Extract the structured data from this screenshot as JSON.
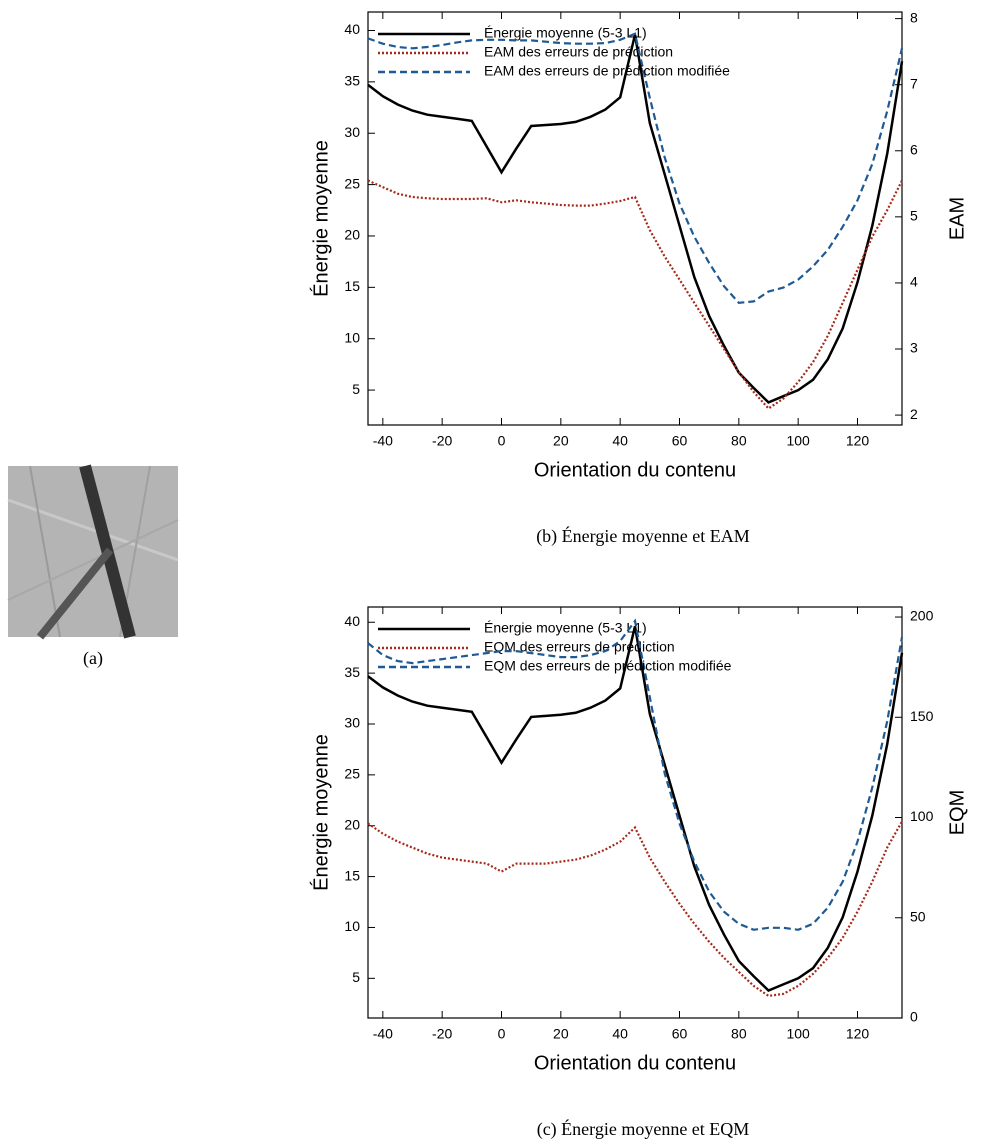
{
  "figure": {
    "image_caption": "(a)"
  },
  "chart_data": [
    {
      "type": "line",
      "caption": "(b) Énergie moyenne et EAM",
      "xlabel": "Orientation du contenu",
      "ylabel": "Énergie moyenne",
      "y2label": "EAM",
      "x": [
        -45,
        -40,
        -35,
        -30,
        -25,
        -20,
        -15,
        -10,
        -5,
        0,
        5,
        10,
        15,
        20,
        25,
        30,
        35,
        40,
        45,
        50,
        55,
        60,
        65,
        70,
        75,
        80,
        85,
        90,
        95,
        100,
        105,
        110,
        115,
        120,
        125,
        130,
        135
      ],
      "xlim": [
        -45,
        135
      ],
      "xticks": [
        -40,
        -20,
        0,
        20,
        40,
        60,
        80,
        100,
        120
      ],
      "ylim": [
        1.6,
        41.8
      ],
      "yticks": [
        5,
        10,
        15,
        20,
        25,
        30,
        35,
        40
      ],
      "y2lim": [
        1.85,
        8.1
      ],
      "y2ticks": [
        2,
        3,
        4,
        5,
        6,
        7,
        8
      ],
      "series": [
        {
          "name": "Énergie moyenne (5-3 L1)",
          "color": "#000000",
          "linestyle": "solid",
          "axis": "y",
          "values": [
            34.7,
            33.6,
            32.8,
            32.2,
            31.8,
            31.6,
            31.4,
            31.2,
            28.7,
            26.2,
            28.5,
            30.7,
            30.8,
            30.9,
            31.1,
            31.6,
            32.3,
            33.5,
            39.6,
            31,
            26,
            21,
            16,
            12.2,
            9.3,
            6.7,
            5.2,
            3.8,
            4.4,
            5.0,
            6.0,
            8.0,
            11.0,
            15.5,
            21,
            28,
            37
          ]
        },
        {
          "name": "EAM des erreurs de prédiction",
          "color": "#a52a1a",
          "linestyle": "dotted",
          "axis": "y2",
          "values": [
            5.55,
            5.45,
            5.35,
            5.3,
            5.28,
            5.27,
            5.27,
            5.27,
            5.28,
            5.22,
            5.25,
            5.22,
            5.2,
            5.18,
            5.17,
            5.17,
            5.2,
            5.24,
            5.3,
            4.8,
            4.4,
            4.05,
            3.7,
            3.35,
            3.0,
            2.65,
            2.35,
            2.1,
            2.25,
            2.5,
            2.8,
            3.2,
            3.7,
            4.2,
            4.7,
            5.1,
            5.55
          ]
        },
        {
          "name": "EAM des erreurs de prédiction modifiée",
          "color": "#1f5a94",
          "linestyle": "dashed",
          "axis": "y2",
          "values": [
            7.7,
            7.62,
            7.57,
            7.55,
            7.57,
            7.6,
            7.64,
            7.67,
            7.68,
            7.68,
            7.67,
            7.67,
            7.65,
            7.63,
            7.62,
            7.62,
            7.63,
            7.68,
            7.77,
            6.8,
            5.9,
            5.2,
            4.7,
            4.3,
            3.95,
            3.7,
            3.72,
            3.87,
            3.93,
            4.05,
            4.25,
            4.5,
            4.85,
            5.25,
            5.8,
            6.6,
            7.55
          ]
        }
      ]
    },
    {
      "type": "line",
      "caption": "(c) Énergie moyenne et EQM",
      "xlabel": "Orientation du contenu",
      "ylabel": "Énergie moyenne",
      "y2label": "EQM",
      "x": [
        -45,
        -40,
        -35,
        -30,
        -25,
        -20,
        -15,
        -10,
        -5,
        0,
        5,
        10,
        15,
        20,
        25,
        30,
        35,
        40,
        45,
        50,
        55,
        60,
        65,
        70,
        75,
        80,
        85,
        90,
        95,
        100,
        105,
        110,
        115,
        120,
        125,
        130,
        135
      ],
      "xlim": [
        -45,
        135
      ],
      "xticks": [
        -40,
        -20,
        0,
        20,
        40,
        60,
        80,
        100,
        120
      ],
      "ylim": [
        1.1,
        41.5
      ],
      "yticks": [
        5,
        10,
        15,
        20,
        25,
        30,
        35,
        40
      ],
      "y2lim": [
        0,
        205
      ],
      "y2ticks": [
        0,
        50,
        100,
        150,
        200
      ],
      "series": [
        {
          "name": "Énergie moyenne (5-3 L1)",
          "color": "#000000",
          "linestyle": "solid",
          "axis": "y",
          "values": [
            34.7,
            33.6,
            32.8,
            32.2,
            31.8,
            31.6,
            31.4,
            31.2,
            28.7,
            26.2,
            28.5,
            30.7,
            30.8,
            30.9,
            31.1,
            31.6,
            32.3,
            33.5,
            39.6,
            31,
            26,
            21,
            16,
            12.2,
            9.3,
            6.7,
            5.2,
            3.8,
            4.4,
            5.0,
            6.0,
            8.0,
            11.0,
            15.5,
            21,
            28,
            37
          ]
        },
        {
          "name": "EQM des erreurs de prédiction",
          "color": "#a52a1a",
          "linestyle": "dotted",
          "axis": "y2",
          "values": [
            97,
            92,
            88,
            85,
            82,
            80,
            79,
            78,
            77,
            73,
            77,
            77,
            77,
            78,
            79,
            81,
            84,
            88,
            95,
            80,
            68,
            57,
            47,
            38,
            30,
            23,
            16,
            11,
            12,
            16,
            22,
            30,
            40,
            53,
            68,
            85,
            98
          ]
        },
        {
          "name": "EQM des erreurs de prédiction modifiée",
          "color": "#1f5a94",
          "linestyle": "dashed",
          "axis": "y2",
          "values": [
            187,
            181,
            178,
            177,
            178,
            179,
            180,
            181,
            182,
            183,
            183,
            182,
            181,
            180,
            180,
            181,
            183,
            188,
            198,
            160,
            122,
            97,
            78,
            63,
            53,
            47,
            44,
            45,
            45,
            44,
            47,
            55,
            68,
            88,
            115,
            148,
            190
          ]
        }
      ]
    }
  ]
}
